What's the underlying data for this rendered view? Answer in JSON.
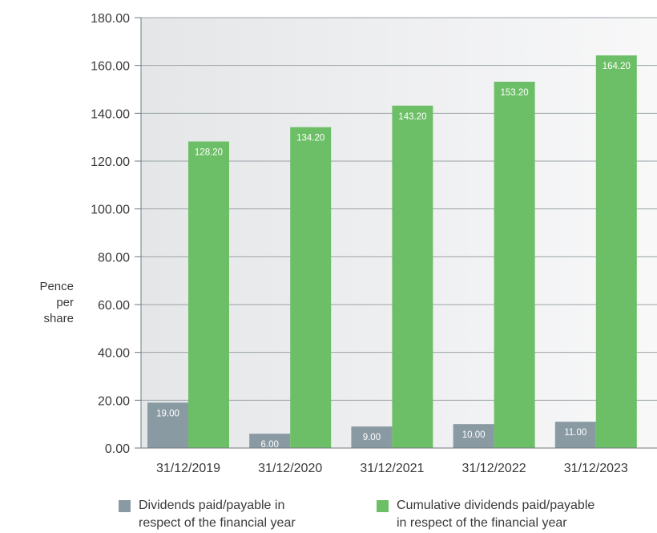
{
  "chart_data": {
    "type": "bar",
    "categories": [
      "31/12/2019",
      "31/12/2020",
      "31/12/2021",
      "31/12/2022",
      "31/12/2023"
    ],
    "series": [
      {
        "name": "Dividends paid/payable in respect of the financial year",
        "name_lines": [
          "Dividends paid/payable in",
          "respect of the financial year"
        ],
        "values": [
          19.0,
          6.0,
          9.0,
          10.0,
          11.0
        ],
        "labels": [
          "19.00",
          "6.00",
          "9.00",
          "10.00",
          "11.00"
        ],
        "color": "#8a9aa3"
      },
      {
        "name": "Cumulative dividends paid/payable in respect of the financial year",
        "name_lines": [
          "Cumulative dividends paid/payable",
          "in respect of the financial year"
        ],
        "values": [
          128.2,
          134.2,
          143.2,
          153.2,
          164.2
        ],
        "labels": [
          "128.20",
          "134.20",
          "143.20",
          "153.20",
          "164.20"
        ],
        "color": "#6dbf67"
      }
    ],
    "ylabel_lines": [
      "Pence",
      "per",
      "share"
    ],
    "ylim": [
      0,
      180
    ],
    "yticks": [
      "0.00",
      "20.00",
      "40.00",
      "60.00",
      "80.00",
      "100.00",
      "120.00",
      "140.00",
      "160.00",
      "180.00"
    ],
    "grid": true,
    "legend": "bottom"
  }
}
